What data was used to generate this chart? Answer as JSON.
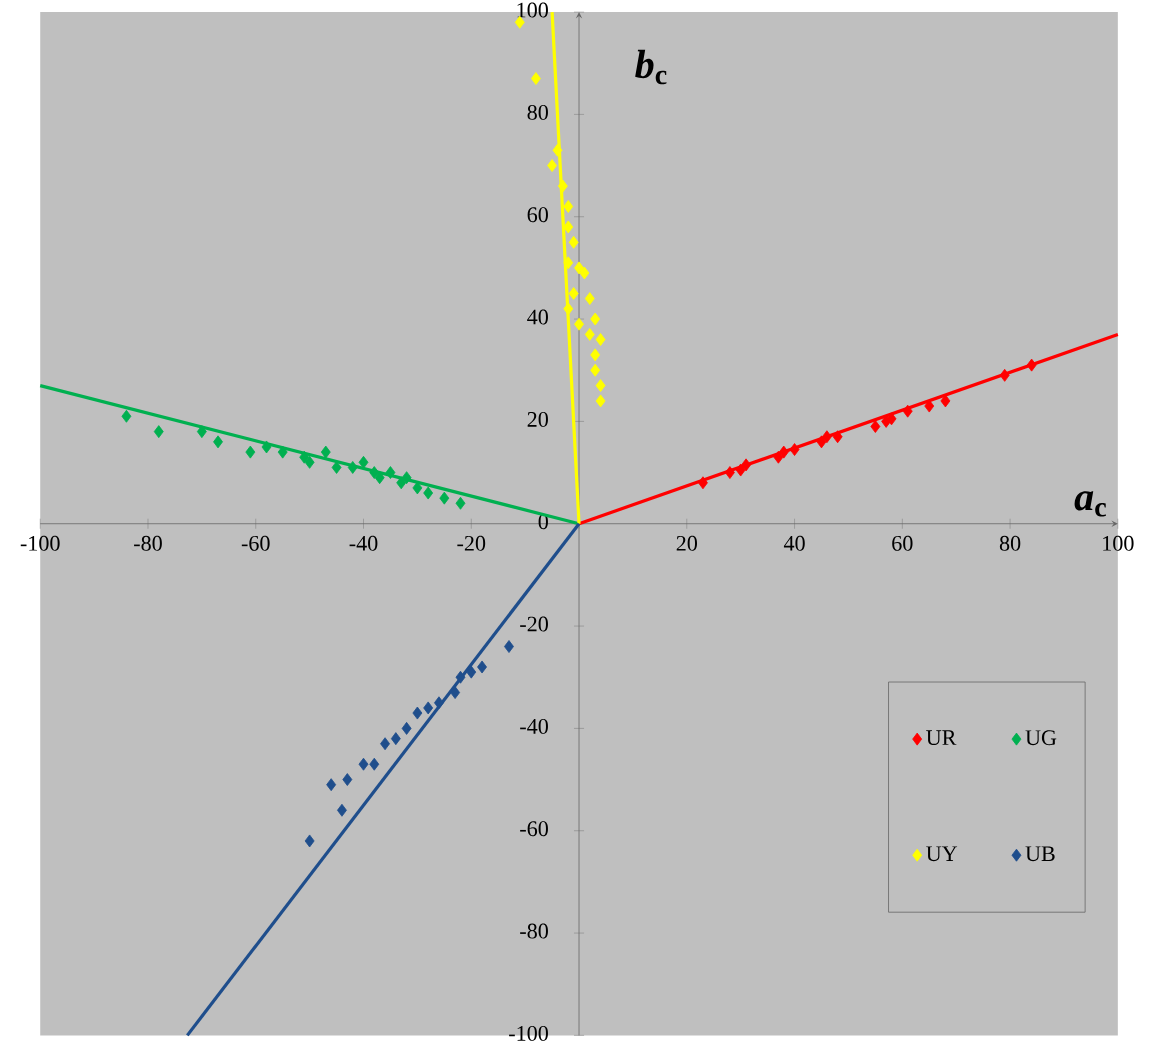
{
  "chart_data": {
    "type": "scatter",
    "xlabel": "*a*$_{c}$",
    "ylabel": "*b*$_{c}$",
    "xlim": [
      -100,
      100
    ],
    "ylim": [
      -100,
      100
    ],
    "xticks": [
      -100,
      -80,
      -60,
      -40,
      -20,
      {
        "value": 0,
        "label": null
      },
      20,
      40,
      60,
      80,
      100
    ],
    "yticks": [
      -100,
      -80,
      -60,
      -40,
      -20,
      0,
      20,
      40,
      60,
      80,
      100
    ],
    "marker": "diamond",
    "legend": "bottom right",
    "grid": false,
    "series": [
      {
        "name": "UR",
        "color": "#ff0000",
        "x": [
          23,
          28,
          30,
          31,
          37,
          38,
          40,
          45,
          46,
          48,
          55,
          57,
          58,
          61,
          65,
          68,
          79,
          84
        ],
        "values": [
          8,
          10,
          10.5,
          11.5,
          13,
          14,
          14.5,
          16,
          17,
          17,
          19,
          20,
          20.5,
          22,
          23,
          24,
          29,
          31
        ]
      },
      {
        "name": "UG",
        "color": "#00b050",
        "x": [
          -84,
          -78,
          -70,
          -67,
          -61,
          -58,
          -55,
          -51,
          -50,
          -47,
          -45,
          -42,
          -40,
          -38,
          -37,
          -35,
          -33,
          -32,
          -30,
          -28,
          -25,
          -22
        ],
        "values": [
          21,
          18,
          18,
          16,
          14,
          15,
          14,
          13,
          12,
          14,
          11,
          11,
          12,
          10,
          9,
          10,
          8,
          9,
          7,
          6,
          5,
          4
        ]
      },
      {
        "name": "UY",
        "color": "#ffff00",
        "x": [
          -11,
          -8,
          -4,
          -5,
          -3,
          -2,
          -2,
          -1,
          -2,
          0,
          1,
          -1,
          2,
          -2,
          3,
          0,
          2,
          4,
          3,
          3,
          4,
          4
        ],
        "values": [
          98,
          87,
          73,
          70,
          66,
          62,
          58,
          55,
          51,
          50,
          49,
          45,
          44,
          42,
          40,
          39,
          37,
          36,
          33,
          30,
          27,
          24
        ]
      },
      {
        "name": "UB",
        "color": "#1f4e8c",
        "x": [
          -13,
          -18,
          -20,
          -22,
          -23,
          -26,
          -28,
          -30,
          -32,
          -34,
          -36,
          -38,
          -40,
          -43,
          -46,
          -44,
          -50
        ],
        "values": [
          -24,
          -28,
          -29,
          -30,
          -33,
          -35,
          -36,
          -37,
          -40,
          -42,
          -43,
          -47,
          -47,
          -50,
          -51,
          -56,
          -62
        ]
      },
      {
        "type": "line",
        "marker": "none",
        "color": "#ff0000",
        "x": [
          0,
          100
        ],
        "values": [
          0,
          37
        ]
      },
      {
        "type": "line",
        "marker": "none",
        "color": "#00b050",
        "x": [
          -100,
          0
        ],
        "values": [
          27,
          0
        ]
      },
      {
        "type": "line",
        "marker": "none",
        "color": "#ffff00",
        "x": [
          0,
          -5
        ],
        "values": [
          0,
          100
        ]
      },
      {
        "type": "line",
        "marker": "none",
        "color": "#1f4e8c",
        "x": [
          0,
          -72.7
        ],
        "values": [
          0,
          -100
        ]
      }
    ]
  }
}
